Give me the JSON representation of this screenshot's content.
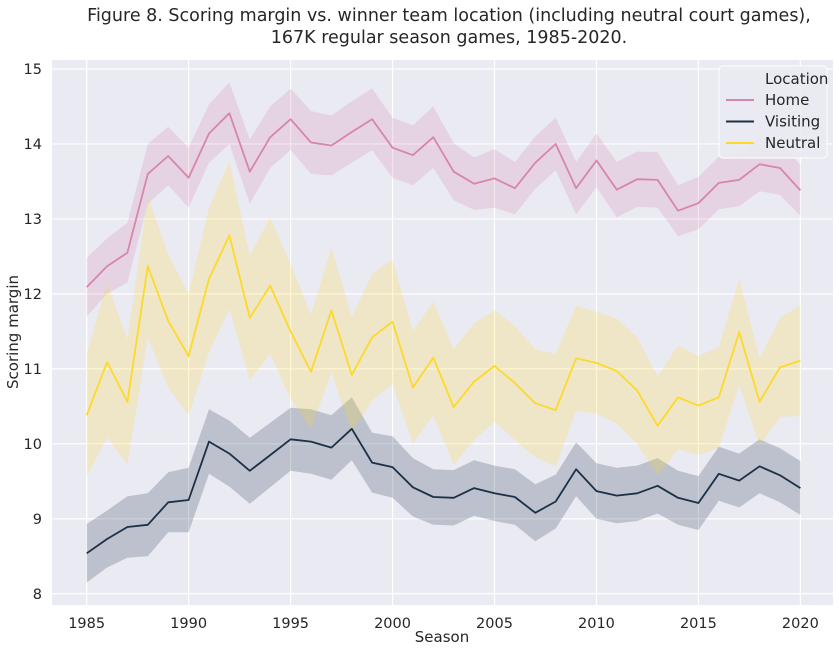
{
  "chart_data": {
    "type": "line",
    "title_line1": "Figure 8. Scoring margin vs. winner team location (including neutral court games),",
    "title_line2": "167K regular season games, 1985-2020.",
    "xlabel": "Season",
    "ylabel": "Scoring margin",
    "xlim": [
      1983.3,
      2021.6
    ],
    "ylim": [
      7.85,
      15.12
    ],
    "xticks": [
      1985,
      1990,
      1995,
      2000,
      2005,
      2010,
      2015,
      2020
    ],
    "yticks": [
      8,
      9,
      10,
      11,
      12,
      13,
      14,
      15
    ],
    "grid": true,
    "legend": {
      "title": "Location",
      "placement": "top-right"
    },
    "x": [
      1985,
      1986,
      1987,
      1988,
      1989,
      1990,
      1991,
      1992,
      1993,
      1994,
      1995,
      1996,
      1997,
      1998,
      1999,
      2000,
      2001,
      2002,
      2003,
      2004,
      2005,
      2006,
      2007,
      2008,
      2009,
      2010,
      2011,
      2012,
      2013,
      2014,
      2015,
      2016,
      2017,
      2018,
      2019,
      2020
    ],
    "series": [
      {
        "name": "Home",
        "color": "#d885ab",
        "values": [
          12.09,
          12.37,
          12.55,
          13.6,
          13.84,
          13.55,
          14.14,
          14.41,
          13.63,
          14.09,
          14.33,
          14.02,
          13.98,
          14.16,
          14.33,
          13.95,
          13.85,
          14.09,
          13.63,
          13.47,
          13.54,
          13.41,
          13.75,
          14.0,
          13.41,
          13.78,
          13.39,
          13.53,
          13.52,
          13.11,
          13.21,
          13.48,
          13.52,
          13.73,
          13.68,
          13.38
        ],
        "lower": [
          11.7,
          12.0,
          12.15,
          13.2,
          13.45,
          13.15,
          13.75,
          14.0,
          13.2,
          13.68,
          13.92,
          13.6,
          13.58,
          13.75,
          13.92,
          13.55,
          13.45,
          13.68,
          13.25,
          13.12,
          13.15,
          13.06,
          13.4,
          13.65,
          13.06,
          13.42,
          13.02,
          13.16,
          13.15,
          12.77,
          12.86,
          13.13,
          13.17,
          13.37,
          13.32,
          13.04
        ],
        "upper": [
          12.48,
          12.74,
          12.95,
          14.0,
          14.23,
          13.95,
          14.53,
          14.82,
          14.06,
          14.5,
          14.74,
          14.44,
          14.38,
          14.57,
          14.74,
          14.35,
          14.25,
          14.5,
          14.01,
          13.82,
          13.93,
          13.76,
          14.1,
          14.35,
          13.76,
          14.14,
          13.76,
          13.9,
          13.89,
          13.45,
          13.56,
          13.83,
          13.87,
          14.09,
          14.04,
          13.72
        ]
      },
      {
        "name": "Visiting",
        "color": "#1c3047",
        "values": [
          8.54,
          8.73,
          8.89,
          8.92,
          9.22,
          9.25,
          10.03,
          9.87,
          9.64,
          9.85,
          10.06,
          10.03,
          9.95,
          10.2,
          9.75,
          9.69,
          9.42,
          9.29,
          9.28,
          9.41,
          9.34,
          9.29,
          9.08,
          9.23,
          9.66,
          9.37,
          9.31,
          9.34,
          9.44,
          9.28,
          9.21,
          9.6,
          9.51,
          9.7,
          9.58,
          9.41
        ],
        "lower": [
          8.15,
          8.35,
          8.48,
          8.5,
          8.82,
          8.82,
          9.6,
          9.43,
          9.2,
          9.42,
          9.64,
          9.6,
          9.52,
          9.78,
          9.35,
          9.28,
          9.03,
          8.92,
          8.91,
          9.04,
          8.97,
          8.92,
          8.7,
          8.87,
          9.3,
          9.0,
          8.94,
          8.97,
          9.07,
          8.92,
          8.85,
          9.24,
          9.15,
          9.34,
          9.22,
          9.05
        ],
        "upper": [
          8.93,
          9.11,
          9.3,
          9.34,
          9.62,
          9.68,
          10.46,
          10.31,
          10.08,
          10.28,
          10.48,
          10.46,
          10.38,
          10.62,
          10.15,
          10.1,
          9.81,
          9.66,
          9.65,
          9.78,
          9.71,
          9.66,
          9.46,
          9.59,
          10.02,
          9.74,
          9.68,
          9.71,
          9.81,
          9.64,
          9.57,
          9.96,
          9.87,
          10.06,
          9.94,
          9.77
        ]
      },
      {
        "name": "Neutral",
        "color": "#fdd92a",
        "values": [
          10.38,
          11.09,
          10.56,
          12.37,
          11.64,
          11.17,
          12.2,
          12.78,
          11.68,
          12.11,
          11.5,
          10.96,
          11.78,
          10.92,
          11.42,
          11.63,
          10.75,
          11.15,
          10.49,
          10.83,
          11.04,
          10.81,
          10.54,
          10.45,
          11.14,
          11.08,
          10.97,
          10.71,
          10.24,
          10.62,
          10.51,
          10.62,
          11.49,
          10.56,
          11.02,
          11.11
        ],
        "lower": [
          9.57,
          10.08,
          9.73,
          11.42,
          10.75,
          10.38,
          11.22,
          11.8,
          10.85,
          11.2,
          10.6,
          10.2,
          10.95,
          10.15,
          10.58,
          10.8,
          10.0,
          10.38,
          9.72,
          10.05,
          10.3,
          10.05,
          9.82,
          9.7,
          10.44,
          10.4,
          10.27,
          10.0,
          9.58,
          9.93,
          9.85,
          9.95,
          10.78,
          9.98,
          10.36,
          10.37
        ],
        "upper": [
          11.19,
          12.15,
          11.39,
          13.3,
          12.53,
          12.0,
          13.15,
          13.76,
          12.51,
          13.02,
          12.4,
          11.72,
          12.62,
          11.69,
          12.26,
          12.46,
          11.5,
          11.9,
          11.26,
          11.61,
          11.78,
          11.57,
          11.26,
          11.2,
          11.84,
          11.76,
          11.67,
          11.42,
          10.9,
          11.31,
          11.17,
          11.29,
          12.2,
          11.14,
          11.68,
          11.85
        ]
      }
    ]
  }
}
